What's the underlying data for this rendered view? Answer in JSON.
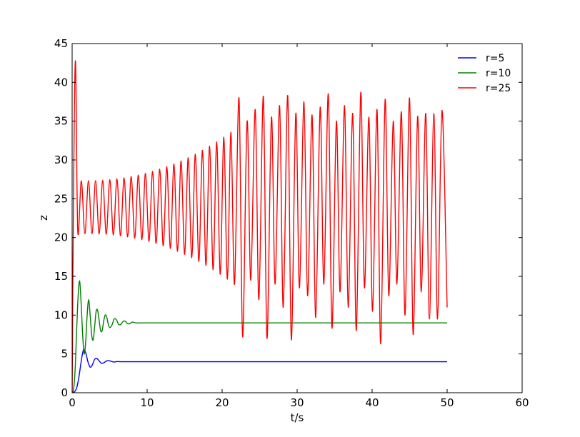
{
  "chart_data": {
    "type": "line",
    "title": "",
    "xlabel": "t/s",
    "ylabel": "z",
    "xlim": [
      0,
      60
    ],
    "ylim": [
      0,
      45
    ],
    "xticks": [
      0,
      10,
      20,
      30,
      40,
      50,
      60
    ],
    "yticks": [
      0,
      5,
      10,
      15,
      20,
      25,
      30,
      35,
      40,
      45
    ],
    "grid": false,
    "legend": {
      "placement": "top-right",
      "frame": false
    },
    "series": [
      {
        "name": "r=5",
        "color": "#0000ff",
        "x": [
          0,
          0.3,
          0.6,
          0.9,
          1.2,
          1.5,
          1.8,
          2.1,
          2.4,
          2.7,
          3.0,
          3.3,
          3.6,
          3.9,
          4.2,
          4.5,
          4.8,
          5.2,
          5.6,
          6.0,
          6.5,
          7.0,
          8.0,
          10,
          15,
          20,
          30,
          40,
          50
        ],
        "y": [
          0,
          0.1,
          0.6,
          2.0,
          4.0,
          5.5,
          5.2,
          4.0,
          3.3,
          3.6,
          4.3,
          4.4,
          4.1,
          3.8,
          3.85,
          4.05,
          4.15,
          4.05,
          3.95,
          4.02,
          4.0,
          4.0,
          4.0,
          4.0,
          4.0,
          4.0,
          4.0,
          4.0,
          4.0
        ]
      },
      {
        "name": "r=10",
        "color": "#008000",
        "x": [
          0,
          0.2,
          0.4,
          0.6,
          0.8,
          1.0,
          1.2,
          1.4,
          1.6,
          1.8,
          2.0,
          2.2,
          2.4,
          2.6,
          2.8,
          3.0,
          3.2,
          3.4,
          3.6,
          3.8,
          4.0,
          4.2,
          4.4,
          4.6,
          4.8,
          5.0,
          5.3,
          5.6,
          5.9,
          6.2,
          6.5,
          6.8,
          7.1,
          7.4,
          7.7,
          8.0,
          8.5,
          9.0,
          9.5,
          10,
          11,
          12,
          15,
          20,
          30,
          40,
          50
        ],
        "y": [
          0,
          0.5,
          3.0,
          8.0,
          12.5,
          14.4,
          11.5,
          7.5,
          5.0,
          6.5,
          10.0,
          12.0,
          10.0,
          7.5,
          6.8,
          8.5,
          10.5,
          10.6,
          9.3,
          8.0,
          8.0,
          9.2,
          10.0,
          9.8,
          8.9,
          8.4,
          8.7,
          9.5,
          9.4,
          8.8,
          8.8,
          9.2,
          9.2,
          8.9,
          8.9,
          9.1,
          9.0,
          9.0,
          9.0,
          9.0,
          9.0,
          9.0,
          9.0,
          9.0,
          9.0,
          9.0,
          9.0
        ]
      },
      {
        "name": "r=25",
        "color": "#ff0000",
        "envelope": {
          "t_start": 0.2,
          "first_peak": 42.7,
          "period": 0.95,
          "max_start": 27.3,
          "min_start": 20.5,
          "max_at_t22": 34.5,
          "min_at_t22": 13.0,
          "peaks_after_t22": [
            38.0,
            35.0,
            36.5,
            38.2,
            35.5,
            37.0,
            38.3,
            36.0,
            37.5,
            35.8,
            36.8,
            38.5,
            35.0,
            37.0,
            36.0,
            38.7,
            35.5,
            36.5,
            37.8,
            35.0,
            36.2,
            38.0,
            35.6,
            36.0,
            36.0,
            36.4
          ],
          "troughs_after_t22": [
            7.2,
            14.5,
            12.0,
            7.0,
            14.0,
            11.0,
            6.8,
            13.5,
            12.5,
            9.7,
            14.0,
            8.3,
            13.0,
            11.0,
            8.0,
            13.5,
            10.5,
            6.3,
            12.5,
            14.0,
            10.0,
            7.5,
            13.0,
            9.5,
            9.5,
            10.0
          ],
          "t_end": 50,
          "y_end": 11
        }
      }
    ]
  }
}
